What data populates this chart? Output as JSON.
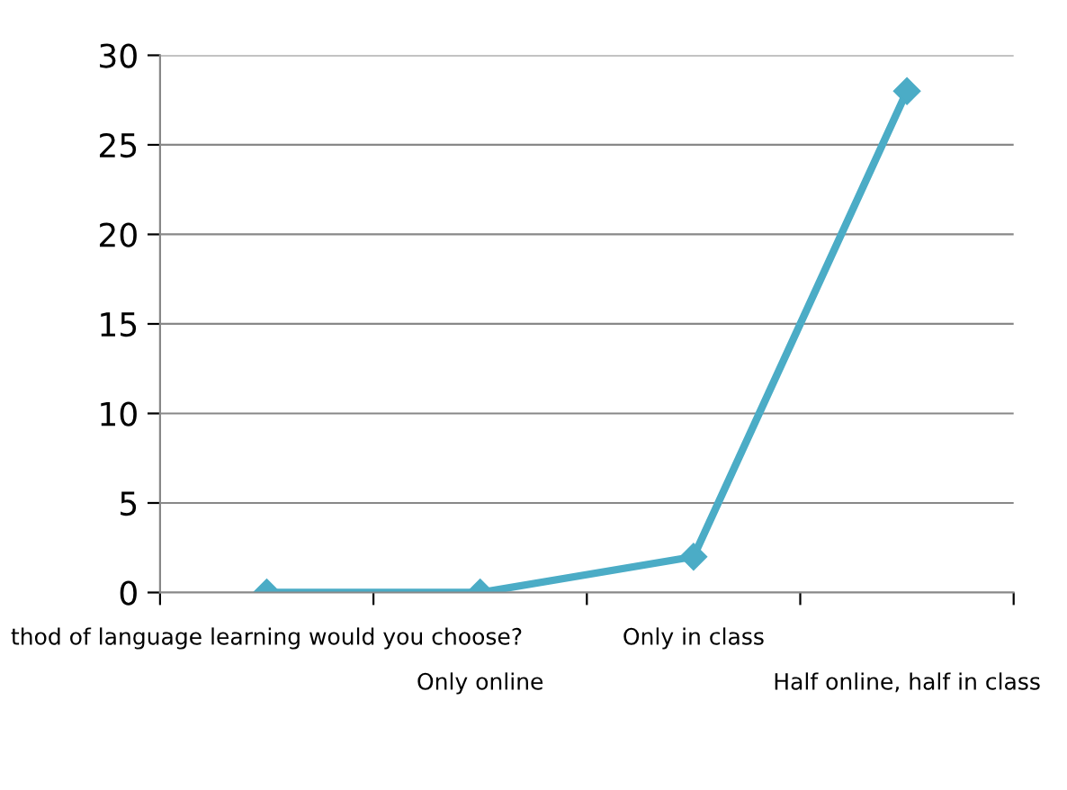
{
  "chart_data": {
    "type": "line",
    "categories": [
      "thod of language learning would you choose?",
      "Only online",
      "Only in class",
      "Half online, half in class"
    ],
    "series": [
      {
        "color": "#4bacc6",
        "values": [
          0,
          0,
          2,
          28
        ]
      }
    ],
    "ylim": [
      0,
      30
    ],
    "yticks": [
      0,
      5,
      10,
      15,
      20,
      25,
      30
    ],
    "grid": "y",
    "marker": "diamond",
    "line_style": "solid"
  }
}
